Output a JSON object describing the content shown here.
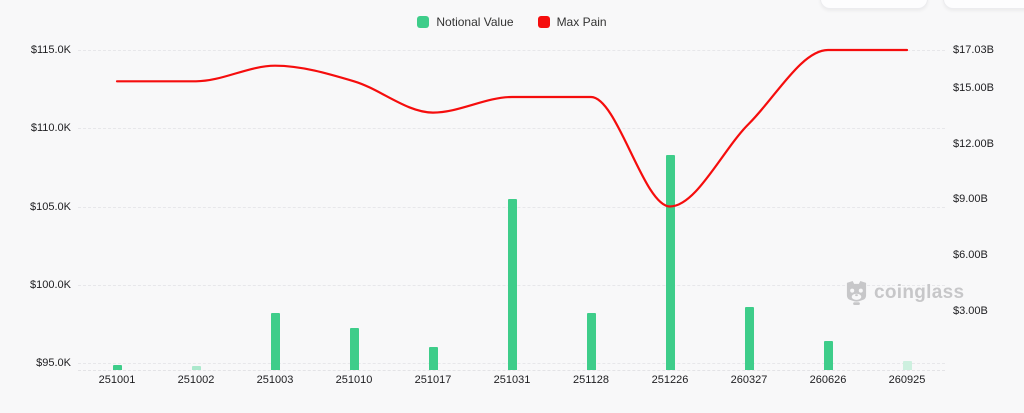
{
  "colors": {
    "background": "#f8f8f9",
    "bar_green": "#3ecd8a",
    "bar_green_muted": "#abe8cc",
    "bar_green_faint": "#cdf0df",
    "line_red": "#f50d0d",
    "grid": "#e7e7ea",
    "axis_text": "#1d1d20",
    "legend_text": "#333333",
    "watermark_gray": "#c7c7c9"
  },
  "legend": {
    "items": [
      {
        "label": "Notional Value",
        "color": "#3ecd8a"
      },
      {
        "label": "Max Pain",
        "color": "#f50d0d"
      }
    ]
  },
  "watermark": {
    "text": "coinglass"
  },
  "chart_data": {
    "type": "combo-bar-line",
    "categories": [
      "251001",
      "251002",
      "251003",
      "251010",
      "251017",
      "251031",
      "251128",
      "251226",
      "260327",
      "260626",
      "260925"
    ],
    "series": [
      {
        "name": "Notional Value",
        "type": "bar",
        "axis": "right",
        "unit": "$B",
        "values": [
          0.1,
          0.06,
          2.9,
          2.1,
          1.05,
          9.0,
          2.9,
          11.4,
          3.2,
          1.4,
          0.3
        ],
        "muted_indices": [
          1,
          10
        ]
      },
      {
        "name": "Max Pain",
        "type": "line",
        "axis": "left",
        "unit": "$K",
        "smooth": true,
        "values": [
          113.0,
          113.0,
          114.0,
          113.0,
          111.0,
          112.0,
          112.0,
          105.0,
          110.3,
          115.0,
          115.0
        ]
      }
    ],
    "left_axis": {
      "tick_labels": [
        "$115.0K",
        "$110.0K",
        "$105.0K",
        "$100.0K",
        "$95.0K"
      ],
      "tick_values": [
        115,
        110,
        105,
        100,
        95
      ]
    },
    "right_axis": {
      "tick_labels": [
        "$17.03B",
        "$15.00B",
        "$12.00B",
        "$9.00B",
        "$6.00B",
        "$3.00B"
      ],
      "tick_values": [
        17.03,
        15,
        12,
        9,
        6,
        3
      ]
    },
    "grid": "horizontal-dashed",
    "legend_position": "top-center"
  }
}
